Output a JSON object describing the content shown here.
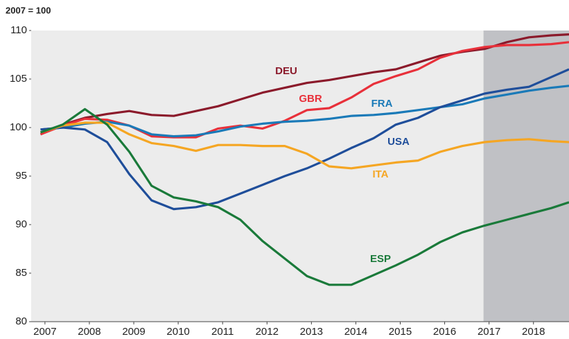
{
  "chart_data": {
    "type": "line",
    "subtitle": "2007 = 100",
    "x": [
      2006.9,
      2007.4,
      2007.9,
      2008.4,
      2008.9,
      2009.4,
      2009.9,
      2010.4,
      2010.9,
      2011.4,
      2011.9,
      2012.4,
      2012.9,
      2013.4,
      2013.9,
      2014.4,
      2014.9,
      2015.4,
      2015.9,
      2016.4,
      2016.9,
      2017.4,
      2017.9,
      2018.4,
      2018.8
    ],
    "series": [
      {
        "name": "DEU",
        "color": "#8b1a2b",
        "values": [
          99.3,
          100.3,
          101,
          101.4,
          101.7,
          101.3,
          101.2,
          101.7,
          102.2,
          102.9,
          103.6,
          104.1,
          104.6,
          104.9,
          105.3,
          105.7,
          106,
          106.7,
          107.4,
          107.8,
          108.1,
          108.8,
          109.3,
          109.5,
          109.6
        ]
      },
      {
        "name": "GBR",
        "color": "#e8303a",
        "values": [
          99.3,
          100.2,
          100.9,
          100.8,
          100.2,
          99.1,
          99,
          99,
          99.9,
          100.2,
          99.9,
          100.7,
          101.8,
          102,
          103.1,
          104.5,
          105.3,
          106,
          107.2,
          107.9,
          108.3,
          108.5,
          108.5,
          108.6,
          108.8
        ]
      },
      {
        "name": "FRA",
        "color": "#1a7ab8",
        "values": [
          99.8,
          100,
          100.4,
          100.6,
          100.2,
          99.3,
          99.1,
          99.2,
          99.6,
          100.1,
          100.4,
          100.6,
          100.7,
          100.9,
          101.2,
          101.3,
          101.5,
          101.8,
          102.1,
          102.4,
          103,
          103.4,
          103.8,
          104.1,
          104.3
        ]
      },
      {
        "name": "USA",
        "color": "#1f4e9a",
        "values": [
          99.8,
          100,
          99.8,
          98.5,
          95.2,
          92.5,
          91.6,
          91.8,
          92.3,
          93.2,
          94.1,
          95,
          95.8,
          96.8,
          97.9,
          98.9,
          100.3,
          101,
          102.1,
          102.8,
          103.5,
          103.9,
          104.2,
          105.2,
          106
        ]
      },
      {
        "name": "ITA",
        "color": "#f5a623",
        "values": [
          99.5,
          100.2,
          100.5,
          100.5,
          99.3,
          98.4,
          98.1,
          97.6,
          98.2,
          98.2,
          98.1,
          98.1,
          97.3,
          96,
          95.8,
          96.1,
          96.4,
          96.6,
          97.5,
          98.1,
          98.5,
          98.7,
          98.8,
          98.6,
          98.5
        ]
      },
      {
        "name": "ESP",
        "color": "#1a7a3a",
        "values": [
          99.5,
          100.3,
          101.9,
          100.3,
          97.5,
          94,
          92.8,
          92.4,
          91.8,
          90.5,
          88.3,
          86.5,
          84.7,
          83.8,
          83.8,
          84.8,
          85.8,
          86.9,
          88.2,
          89.2,
          89.9,
          90.5,
          91.1,
          91.7,
          92.3
        ]
      }
    ],
    "forecast_from": 2016.875,
    "xlim": [
      2006.69,
      2018.8
    ],
    "xticks": [
      2007,
      2008,
      2009,
      2010,
      2011,
      2012,
      2013,
      2014,
      2015,
      2016,
      2017,
      2018
    ],
    "ylim": [
      80,
      110
    ],
    "yticks": [
      80,
      85,
      90,
      95,
      100,
      105,
      110
    ]
  }
}
